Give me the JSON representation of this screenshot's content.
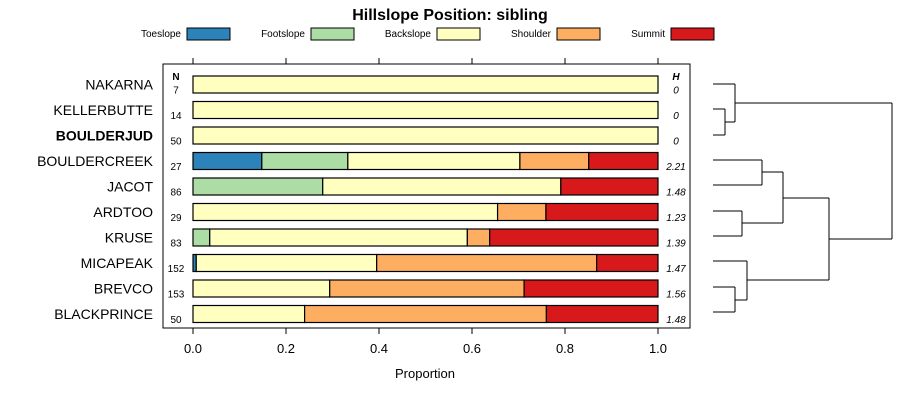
{
  "chart_data": {
    "type": "bar",
    "orientation": "horizontal",
    "stacked": true,
    "title": "Hillslope Position: sibling",
    "xlabel": "Proportion",
    "xlim": [
      0,
      1
    ],
    "xticks": [
      "0.0",
      "0.2",
      "0.4",
      "0.6",
      "0.8",
      "1.0"
    ],
    "n_header": "N",
    "h_header": "H",
    "legend": [
      {
        "name": "Toeslope",
        "color": "#2b83ba"
      },
      {
        "name": "Footslope",
        "color": "#abdda4"
      },
      {
        "name": "Backslope",
        "color": "#ffffbf"
      },
      {
        "name": "Shoulder",
        "color": "#fdae61"
      },
      {
        "name": "Summit",
        "color": "#d7191c"
      }
    ],
    "rows": [
      {
        "label": "NAKARNA",
        "bold": false,
        "n": "7",
        "h": "0",
        "values": [
          0,
          0,
          1.0,
          0,
          0
        ]
      },
      {
        "label": "KELLERBUTTE",
        "bold": false,
        "n": "14",
        "h": "0",
        "values": [
          0,
          0,
          1.0,
          0,
          0
        ]
      },
      {
        "label": "BOULDERJUD",
        "bold": true,
        "n": "50",
        "h": "0",
        "values": [
          0,
          0,
          1.0,
          0,
          0
        ]
      },
      {
        "label": "BOULDERCREEK",
        "bold": false,
        "n": "27",
        "h": "2.21",
        "values": [
          0.148,
          0.185,
          0.37,
          0.148,
          0.149
        ]
      },
      {
        "label": "JACOT",
        "bold": false,
        "n": "86",
        "h": "1.48",
        "values": [
          0,
          0.279,
          0.512,
          0,
          0.209
        ]
      },
      {
        "label": "ARDTOO",
        "bold": false,
        "n": "29",
        "h": "1.23",
        "values": [
          0,
          0,
          0.655,
          0.104,
          0.241
        ]
      },
      {
        "label": "KRUSE",
        "bold": false,
        "n": "83",
        "h": "1.39",
        "values": [
          0,
          0.036,
          0.554,
          0.048,
          0.362
        ]
      },
      {
        "label": "MICAPEAK",
        "bold": false,
        "n": "152",
        "h": "1.47",
        "values": [
          0.007,
          0,
          0.388,
          0.473,
          0.132
        ]
      },
      {
        "label": "BREVCO",
        "bold": false,
        "n": "153",
        "h": "1.56",
        "values": [
          0,
          0,
          0.294,
          0.418,
          0.288
        ]
      },
      {
        "label": "BLACKPRINCE",
        "bold": false,
        "n": "50",
        "h": "1.48",
        "values": [
          0,
          0,
          0.24,
          0.52,
          0.24
        ]
      }
    ]
  }
}
